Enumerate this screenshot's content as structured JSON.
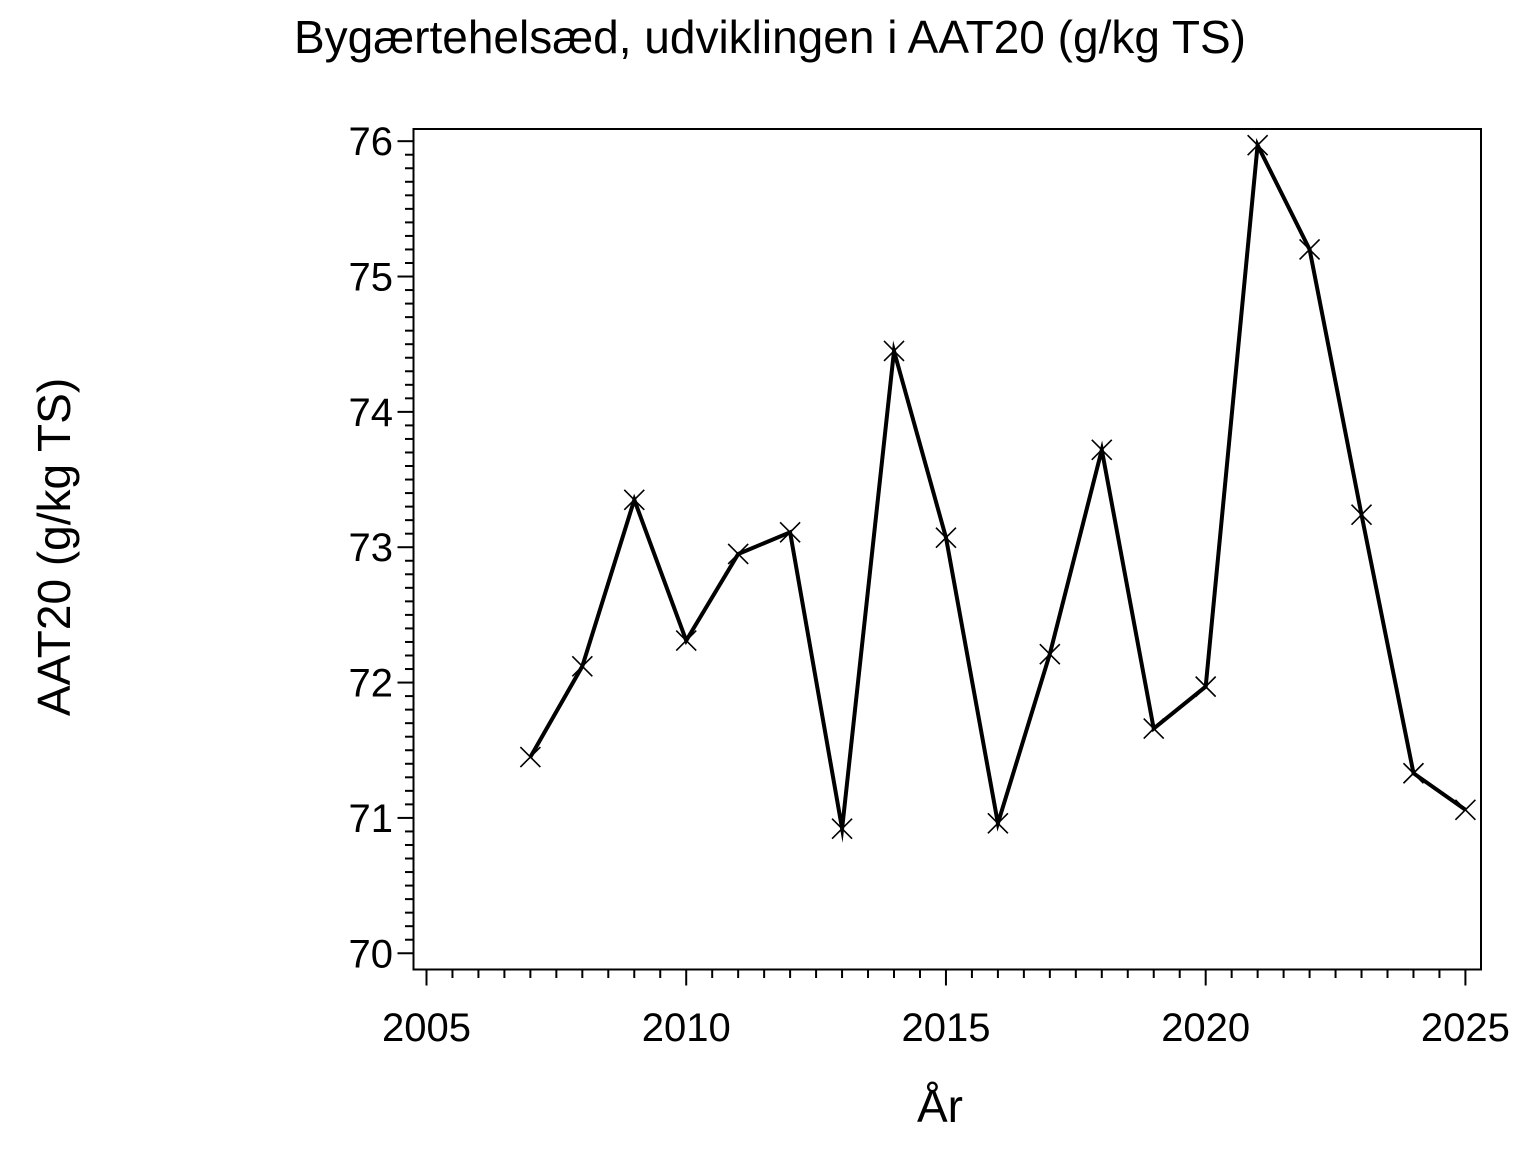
{
  "page": {
    "background": "#ffffff"
  },
  "chart_data": {
    "type": "line",
    "title": "Bygærtehelsæd, udviklingen i AAT20 (g/kg TS)",
    "xlabel": "År",
    "ylabel": "AAT20 (g/kg TS)",
    "series": [
      {
        "name": "AAT20",
        "x": [
          2007,
          2008,
          2009,
          2010,
          2011,
          2012,
          2013,
          2014,
          2015,
          2016,
          2017,
          2018,
          2019,
          2020,
          2021,
          2022,
          2023,
          2024,
          2025
        ],
        "y": [
          71.45,
          72.12,
          73.35,
          72.31,
          72.95,
          73.11,
          70.92,
          74.45,
          73.07,
          70.96,
          72.21,
          73.72,
          71.66,
          71.97,
          75.97,
          75.2,
          73.24,
          71.33,
          71.06
        ],
        "marker": "x",
        "color": "#000000",
        "line_width": 4
      }
    ],
    "xlim": [
      2004.75,
      2025.3
    ],
    "ylim": [
      69.88,
      76.09
    ],
    "x_major_ticks": [
      2005,
      2010,
      2015,
      2020,
      2025
    ],
    "x_minor_step": 0.5,
    "y_major_ticks": [
      70,
      71,
      72,
      73,
      74,
      75,
      76
    ],
    "y_minor_step": 0.1,
    "grid": false,
    "legend": "none",
    "axis_color": "#000000",
    "text_color": "#000000",
    "plot_background": "#ffffff"
  }
}
